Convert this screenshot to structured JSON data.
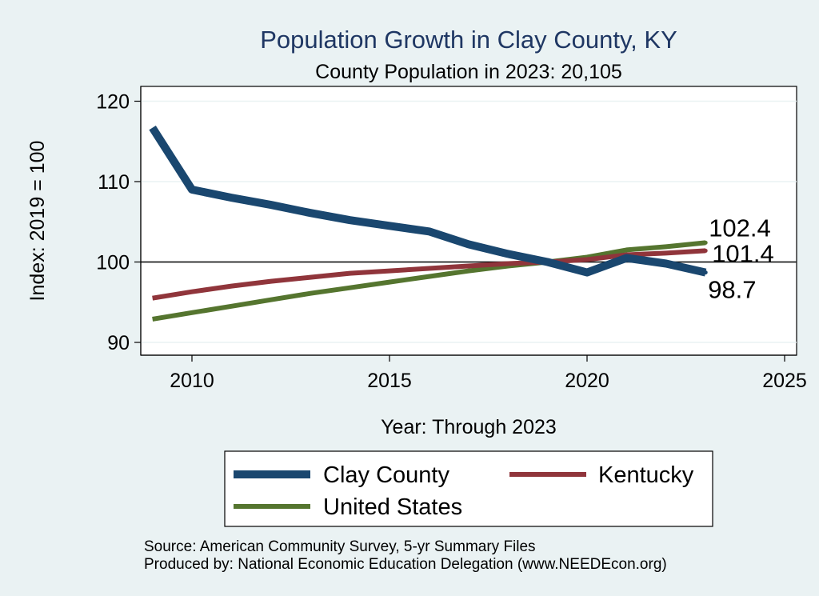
{
  "chart_data": {
    "type": "line",
    "title": "Population Growth in Clay County, KY",
    "subtitle": "County Population in 2023: 20,105",
    "xlabel": "Year: Through 2023",
    "ylabel": "Index: 2019 = 100",
    "xlim": [
      2009,
      2025
    ],
    "ylim": [
      88,
      120
    ],
    "x_ticks": [
      2010,
      2015,
      2020,
      2025
    ],
    "y_ticks": [
      90,
      100,
      110,
      120
    ],
    "reference_line": 100,
    "grid": true,
    "legend_position": "bottom",
    "series": [
      {
        "name": "Clay  County",
        "color": "#1a476f",
        "x": [
          2009,
          2010,
          2011,
          2012,
          2013,
          2014,
          2015,
          2016,
          2017,
          2018,
          2019,
          2020,
          2021,
          2022,
          2023
        ],
        "values": [
          116.7,
          109.0,
          108.0,
          107.1,
          106.1,
          105.2,
          104.5,
          103.8,
          102.2,
          101.0,
          100.0,
          98.7,
          100.5,
          99.8,
          98.7
        ],
        "end_label": "98.7"
      },
      {
        "name": "Kentucky",
        "color": "#90353b",
        "x": [
          2009,
          2010,
          2011,
          2012,
          2013,
          2014,
          2015,
          2016,
          2017,
          2018,
          2019,
          2020,
          2021,
          2022,
          2023
        ],
        "values": [
          95.5,
          96.3,
          97.0,
          97.6,
          98.1,
          98.6,
          98.9,
          99.2,
          99.5,
          99.8,
          100.0,
          100.3,
          100.9,
          101.1,
          101.4
        ],
        "end_label": "101.4"
      },
      {
        "name": "United States",
        "color": "#55752f",
        "x": [
          2009,
          2010,
          2011,
          2012,
          2013,
          2014,
          2015,
          2016,
          2017,
          2018,
          2019,
          2020,
          2021,
          2022,
          2023
        ],
        "values": [
          92.9,
          93.7,
          94.5,
          95.3,
          96.1,
          96.8,
          97.5,
          98.2,
          98.9,
          99.5,
          100.0,
          100.6,
          101.5,
          101.9,
          102.4
        ],
        "end_label": "102.4"
      }
    ],
    "source_lines": [
      "Source: American Community Survey, 5-yr Summary Files",
      "Produced by: National Economic Education Delegation (www.NEEDEcon.org)"
    ]
  }
}
